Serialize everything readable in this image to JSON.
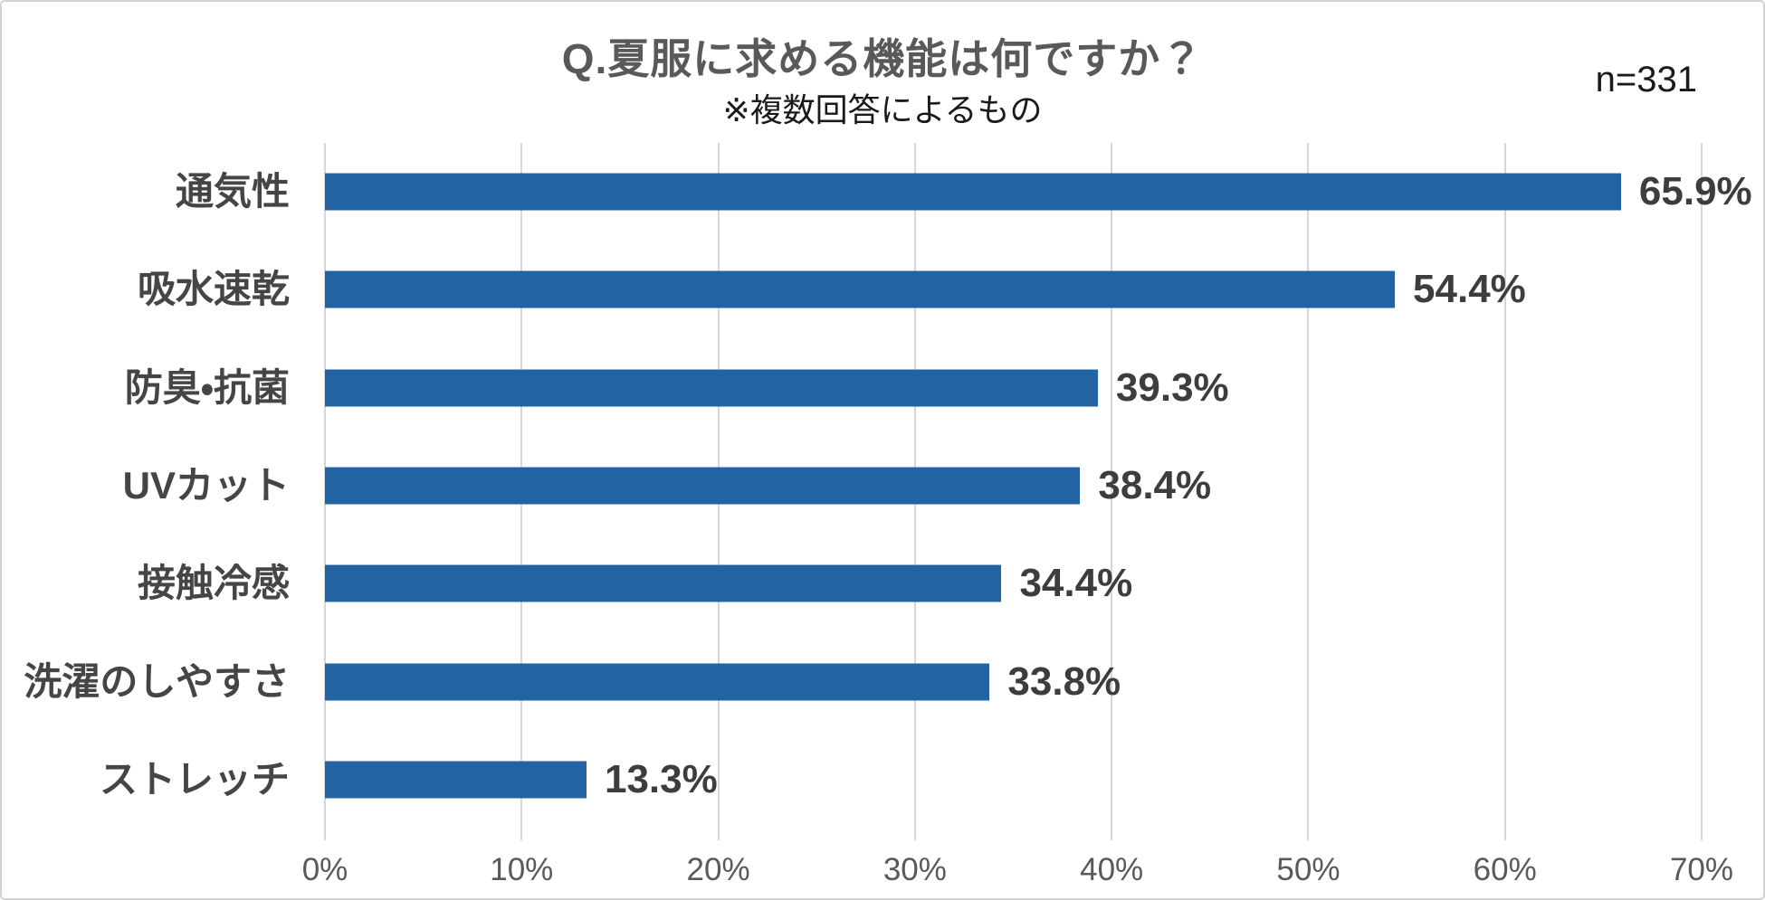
{
  "header": {
    "title": "Q.夏服に求める機能は何ですか？",
    "subtitle": "※複数回答によるもの",
    "sample_size": "n=331"
  },
  "chart_data": {
    "type": "bar",
    "orientation": "horizontal",
    "title": "Q.夏服に求める機能は何ですか？",
    "subtitle": "※複数回答によるもの",
    "sample_note": "n=331",
    "categories": [
      "通気性",
      "吸水速乾",
      "防臭・抗菌",
      "UVカット",
      "接触冷感",
      "洗濯のしやすさ",
      "ストレッチ"
    ],
    "values": [
      65.9,
      54.4,
      39.3,
      38.4,
      34.4,
      33.8,
      13.3
    ],
    "value_labels": [
      "65.9%",
      "54.4%",
      "39.3%",
      "38.4%",
      "34.4%",
      "33.8%",
      "13.3%"
    ],
    "xlim": [
      0,
      70
    ],
    "x_ticks": [
      0,
      10,
      20,
      30,
      40,
      50,
      60,
      70
    ],
    "x_tick_labels": [
      "0%",
      "10%",
      "20%",
      "30%",
      "40%",
      "50%",
      "60%",
      "70%"
    ],
    "grid": true,
    "legend": false,
    "bar_color": "#2263a4",
    "gridline_color": "#d7d7d7",
    "title_color": "#595959",
    "label_color": "#454545",
    "value_color": "#3d3d3d",
    "tick_color": "#595959"
  }
}
